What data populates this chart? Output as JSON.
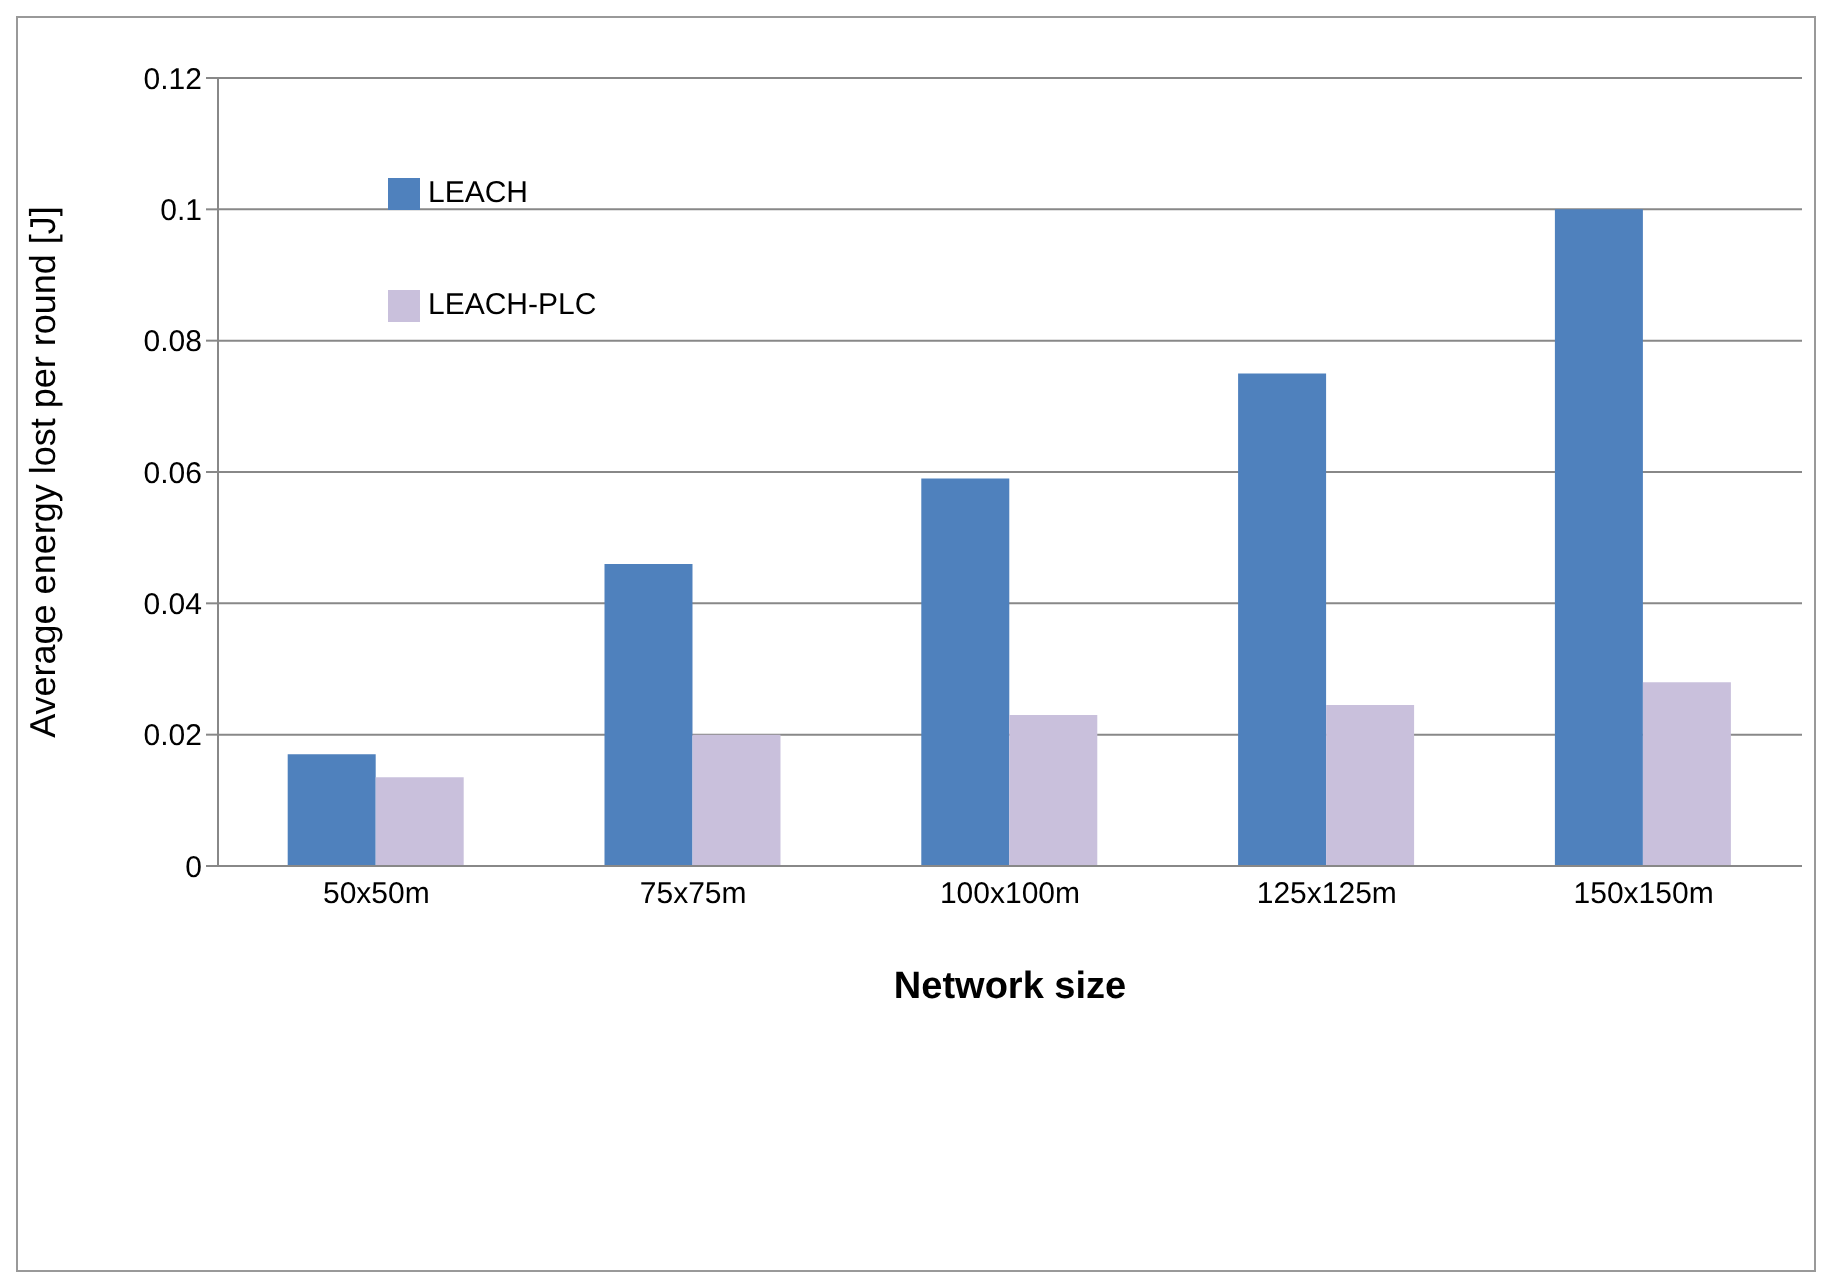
{
  "chart_data": {
    "type": "bar",
    "xlabel": "Network size",
    "ylabel": "Average energy lost per round [J]",
    "categories": [
      "50x50m",
      "75x75m",
      "100x100m",
      "125x125m",
      "150x150m"
    ],
    "series": [
      {
        "name": "LEACH",
        "color": "#4f81bd",
        "values": [
          0.017,
          0.046,
          0.059,
          0.075,
          0.1
        ]
      },
      {
        "name": "LEACH-PLC",
        "color": "#c9c0dc",
        "values": [
          0.0135,
          0.02,
          0.023,
          0.0245,
          0.028
        ]
      }
    ],
    "ylim": [
      0,
      0.12
    ],
    "yticks": [
      0,
      0.02,
      0.04,
      0.06,
      0.08,
      0.1,
      0.12
    ],
    "grid": "y",
    "legend": "top left"
  }
}
